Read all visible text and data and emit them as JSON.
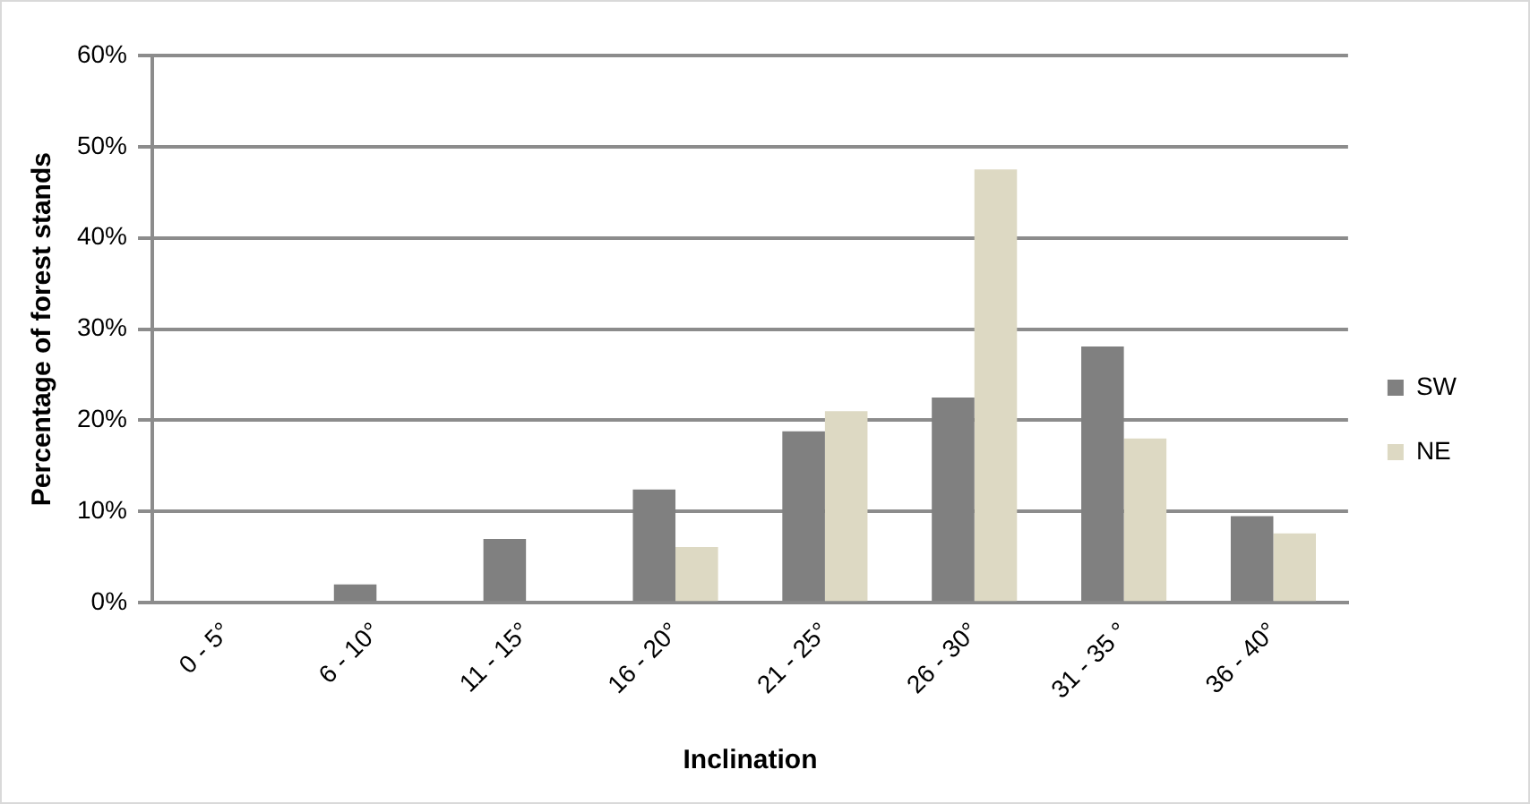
{
  "chart_data": {
    "type": "bar",
    "xlabel": "Inclination",
    "ylabel": "Percentage of forest stands",
    "categories": [
      "0 - 5°",
      "6 - 10°",
      "11 - 15°",
      "16 - 20°",
      "21 - 25°",
      "26 - 30°",
      "31 - 35 °",
      "36 - 40°"
    ],
    "series": [
      {
        "name": "SW",
        "color": "#808080",
        "values": [
          0,
          2,
          7,
          12.4,
          18.8,
          22.5,
          28.1,
          9.5
        ]
      },
      {
        "name": "NE",
        "color": "#ddd9c3",
        "values": [
          0,
          0,
          0,
          6.1,
          21,
          47.5,
          18,
          7.6
        ]
      }
    ],
    "ylim": [
      0,
      60
    ],
    "yticks": [
      {
        "value": 0,
        "label": "0%"
      },
      {
        "value": 10,
        "label": "10%"
      },
      {
        "value": 20,
        "label": "20%"
      },
      {
        "value": 30,
        "label": "30%"
      },
      {
        "value": 40,
        "label": "40%"
      },
      {
        "value": 50,
        "label": "50%"
      },
      {
        "value": 60,
        "label": "60%"
      }
    ],
    "grid": "y",
    "legend": "right"
  }
}
